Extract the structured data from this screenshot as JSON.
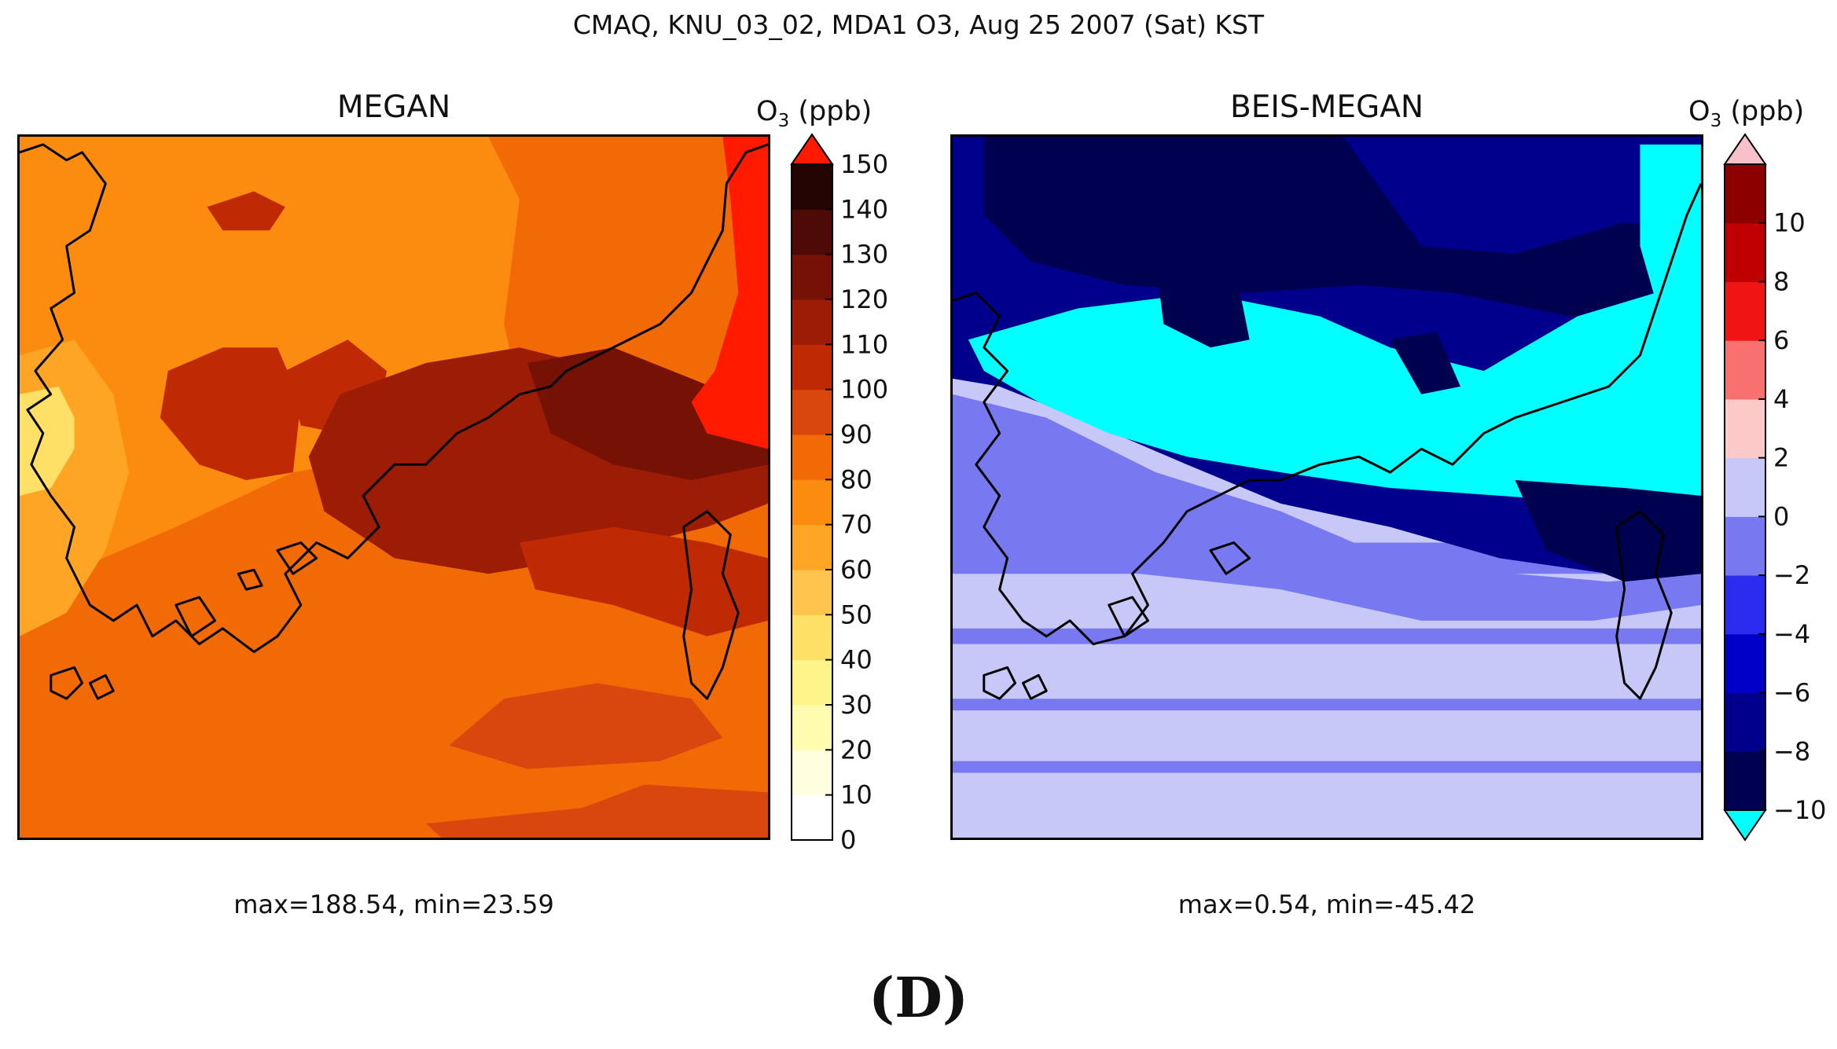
{
  "figure": {
    "suptitle": "CMAQ, KNU_03_02, MDA1 O3, Aug 25 2007 (Sat) KST",
    "panel_label": "(D)"
  },
  "chart_data": [
    {
      "type": "heatmap",
      "title": "MEGAN",
      "colorbar_label": "O",
      "colorbar_label_sub": "3",
      "colorbar_label_unit": " (ppb)",
      "colorbar_ticks": [
        "0",
        "10",
        "20",
        "30",
        "40",
        "50",
        "60",
        "70",
        "80",
        "90",
        "100",
        "110",
        "120",
        "130",
        "140",
        "150"
      ],
      "levels": [
        0,
        10,
        20,
        30,
        40,
        50,
        60,
        70,
        80,
        90,
        100,
        110,
        120,
        130,
        140,
        150
      ],
      "colors": [
        "#ffffff",
        "#ffffe0",
        "#fffcb0",
        "#fff48a",
        "#ffe066",
        "#ffc44d",
        "#ffa526",
        "#fb8c0f",
        "#f26a05",
        "#d9470e",
        "#bf2a05",
        "#9c1c05",
        "#751205",
        "#4d0a06",
        "#250404"
      ],
      "over_color": "#ff1a00",
      "extend": "max",
      "stats": "max=188.54, min=23.59",
      "regions": [
        {
          "name": "background-ocean",
          "value": 83
        },
        {
          "name": "south-sea",
          "value": 85
        },
        {
          "name": "southern-ocean-bands",
          "value": 92
        },
        {
          "name": "mainland-west-coast",
          "value": 67
        },
        {
          "name": "inland-west",
          "value": 73
        },
        {
          "name": "upper-inland",
          "value": 76
        },
        {
          "name": "central-dark-patch",
          "value": 103
        },
        {
          "name": "eastern-dark-plume",
          "value": 113
        },
        {
          "name": "east-coast-plume",
          "value": 128
        },
        {
          "name": "sea-of-japan-exceedance",
          "value": 175
        },
        {
          "name": "west-coast-minimum",
          "value": 45
        }
      ]
    },
    {
      "type": "heatmap",
      "title": "BEIS-MEGAN",
      "colorbar_label": "O",
      "colorbar_label_sub": "3",
      "colorbar_label_unit": " (ppb)",
      "colorbar_ticks": [
        "10",
        "8",
        "6",
        "4",
        "2",
        "0",
        "−2",
        "−4",
        "−6",
        "−8",
        "−10"
      ],
      "levels": [
        -10,
        -8,
        -6,
        -4,
        -2,
        0,
        2,
        4,
        6,
        8,
        10
      ],
      "colors": [
        "#000050",
        "#00008c",
        "#0000c8",
        "#2c2cf0",
        "#7878f0",
        "#c8c8f8",
        "#fcc8c8",
        "#f87070",
        "#f01414",
        "#c00000",
        "#8c0000"
      ],
      "over_color": "#f8c0c8",
      "under_color": "#00ffff",
      "extend": "both",
      "stats": "max=0.54, min=-45.42",
      "regions": [
        {
          "name": "southern-ocean",
          "value": 0.5
        },
        {
          "name": "ocean-noise",
          "value": -1.0
        },
        {
          "name": "southwest-land",
          "value": -1.5
        },
        {
          "name": "northern-land",
          "value": -6.5
        },
        {
          "name": "northern-deep",
          "value": -9
        },
        {
          "name": "central-band",
          "value": -14
        },
        {
          "name": "east-coast-band",
          "value": -9
        },
        {
          "name": "northeast-corner",
          "value": -16
        }
      ]
    }
  ]
}
